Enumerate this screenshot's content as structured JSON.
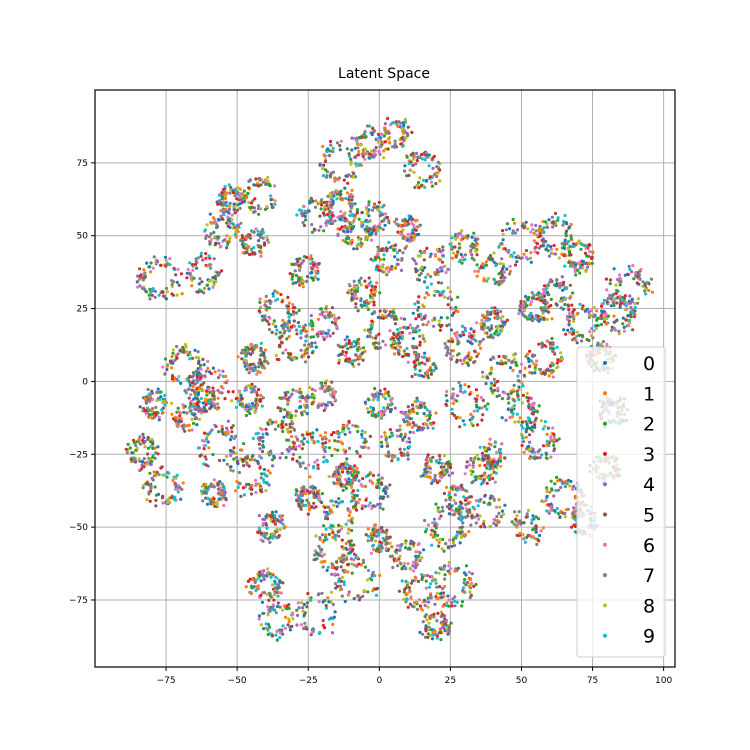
{
  "chart_data": {
    "type": "scatter",
    "title": "Latent Space",
    "xlabel": "",
    "ylabel": "",
    "xlim": [
      -100,
      104
    ],
    "ylim": [
      -98,
      100
    ],
    "x_ticks": [
      -75,
      -50,
      -25,
      0,
      25,
      50,
      75,
      100
    ],
    "y_ticks": [
      -75,
      -50,
      -25,
      0,
      25,
      50,
      75
    ],
    "x_tick_labels": [
      "−75",
      "−50",
      "−25",
      "0",
      "25",
      "50",
      "75",
      "100"
    ],
    "y_tick_labels": [
      "−75",
      "−50",
      "−25",
      "0",
      "25",
      "50",
      "75"
    ],
    "grid": true,
    "legend_position": "right",
    "series": [
      {
        "name": "0",
        "color": "#1f77b4"
      },
      {
        "name": "1",
        "color": "#ff7f0e"
      },
      {
        "name": "2",
        "color": "#2ca02c"
      },
      {
        "name": "3",
        "color": "#d62728"
      },
      {
        "name": "4",
        "color": "#9467bd"
      },
      {
        "name": "5",
        "color": "#8c564b"
      },
      {
        "name": "6",
        "color": "#e377c2"
      },
      {
        "name": "7",
        "color": "#7f7f7f"
      },
      {
        "name": "8",
        "color": "#bcbd22"
      },
      {
        "name": "9",
        "color": "#17becf"
      }
    ],
    "clusters": [
      [
        -83,
        -24
      ],
      [
        -79,
        -8
      ],
      [
        -76,
        -36
      ],
      [
        -68,
        -13
      ],
      [
        -62,
        -6
      ],
      [
        -58,
        -38
      ],
      [
        -45,
        -32
      ],
      [
        -46,
        -6
      ],
      [
        -56,
        -22
      ],
      [
        -77,
        35
      ],
      [
        -62,
        37
      ],
      [
        -55,
        52
      ],
      [
        -52,
        63
      ],
      [
        -44,
        48
      ],
      [
        -42,
        64
      ],
      [
        -36,
        24
      ],
      [
        -30,
        13
      ],
      [
        -20,
        20
      ],
      [
        -26,
        38
      ],
      [
        -22,
        57
      ],
      [
        -14,
        60
      ],
      [
        -8,
        51
      ],
      [
        -2,
        56
      ],
      [
        -14,
        75
      ],
      [
        -3,
        82
      ],
      [
        6,
        85
      ],
      [
        15,
        73
      ],
      [
        10,
        52
      ],
      [
        3,
        42
      ],
      [
        18,
        40
      ],
      [
        30,
        46
      ],
      [
        40,
        38
      ],
      [
        50,
        48
      ],
      [
        62,
        50
      ],
      [
        70,
        43
      ],
      [
        62,
        30
      ],
      [
        55,
        25
      ],
      [
        40,
        20
      ],
      [
        30,
        12
      ],
      [
        20,
        26
      ],
      [
        10,
        14
      ],
      [
        2,
        18
      ],
      [
        -6,
        30
      ],
      [
        -10,
        10
      ],
      [
        -20,
        -5
      ],
      [
        -30,
        -8
      ],
      [
        -36,
        -20
      ],
      [
        -24,
        -24
      ],
      [
        -10,
        -20
      ],
      [
        0,
        -8
      ],
      [
        6,
        -22
      ],
      [
        14,
        -12
      ],
      [
        20,
        -30
      ],
      [
        28,
        -40
      ],
      [
        38,
        -45
      ],
      [
        40,
        -25
      ],
      [
        50,
        -10
      ],
      [
        56,
        -20
      ],
      [
        52,
        -50
      ],
      [
        65,
        -40
      ],
      [
        72,
        -48
      ],
      [
        80,
        -30
      ],
      [
        82,
        -10
      ],
      [
        78,
        8
      ],
      [
        84,
        24
      ],
      [
        88,
        32
      ],
      [
        72,
        20
      ],
      [
        58,
        8
      ],
      [
        44,
        2
      ],
      [
        30,
        -8
      ],
      [
        15,
        5
      ],
      [
        -3,
        -38
      ],
      [
        -14,
        -46
      ],
      [
        -25,
        -40
      ],
      [
        -38,
        -50
      ],
      [
        -40,
        -70
      ],
      [
        -36,
        -82
      ],
      [
        -22,
        -80
      ],
      [
        -8,
        -68
      ],
      [
        -16,
        -58
      ],
      [
        0,
        -54
      ],
      [
        10,
        -60
      ],
      [
        14,
        -72
      ],
      [
        20,
        -84
      ],
      [
        26,
        -70
      ],
      [
        -68,
        5
      ],
      [
        -60,
        -2
      ],
      [
        -44,
        8
      ],
      [
        -12,
        -32
      ],
      [
        24,
        -50
      ],
      [
        36,
        -30
      ]
    ]
  }
}
